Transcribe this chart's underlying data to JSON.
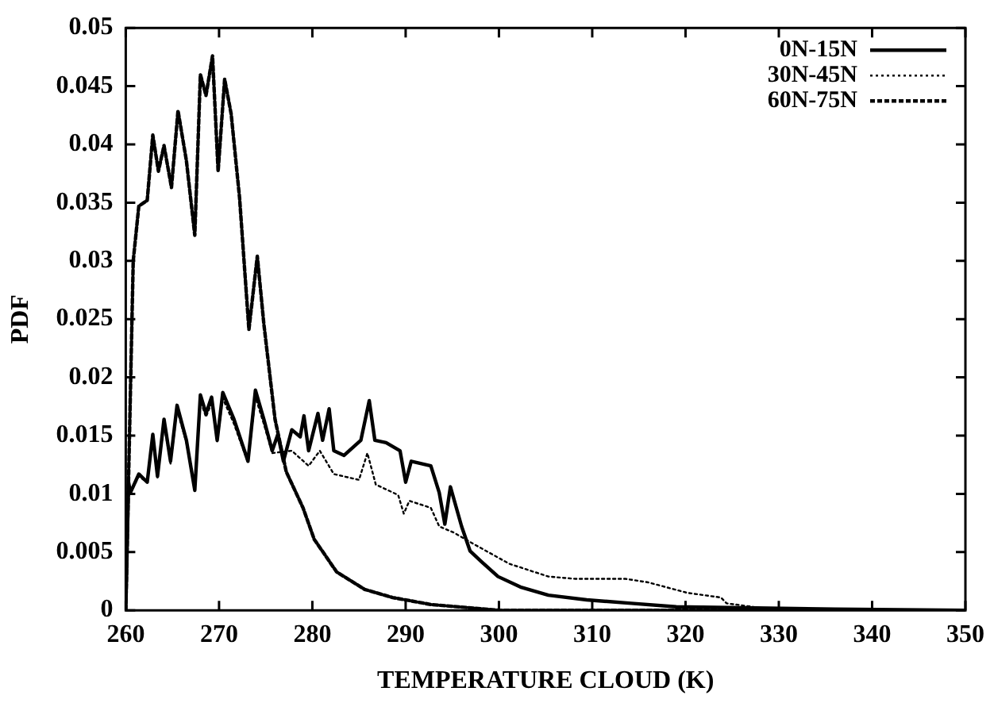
{
  "chart_data": {
    "type": "line",
    "xlabel": "TEMPERATURE CLOUD (K)",
    "ylabel": "PDF",
    "xlim": [
      260,
      350
    ],
    "ylim": [
      0,
      0.05
    ],
    "xticks": [
      260,
      270,
      280,
      290,
      300,
      310,
      320,
      330,
      340,
      350
    ],
    "yticks": [
      0,
      0.005,
      0.01,
      0.015,
      0.02,
      0.025,
      0.03,
      0.035,
      0.04,
      0.045,
      0.05
    ],
    "grid": false,
    "legend": "top right",
    "marker": "none",
    "series": [
      {
        "name": "0N-15N",
        "color": "#000000",
        "line_style": "solid",
        "x": [
          260,
          260.3,
          260.5,
          261.4,
          262.3,
          262.9,
          263.4,
          264.1,
          264.8,
          265.5,
          266.5,
          267.4,
          268,
          268.6,
          269.2,
          269.8,
          270.4,
          271.6,
          273.1,
          273.9,
          274.8,
          275.7,
          276.3,
          276.9,
          277.8,
          278.7,
          279.1,
          279.6,
          280.6,
          281.1,
          281.8,
          282.3,
          283.4,
          285.2,
          286.1,
          286.7,
          287.9,
          289.4,
          290,
          290.6,
          292.7,
          293.6,
          294.2,
          294.8,
          296,
          296.9,
          298.1,
          299.9,
          302.3,
          305.3,
          309.4,
          314.2,
          319,
          336,
          350
        ],
        "values": [
          0,
          0.011,
          0.0101,
          0.0117,
          0.011,
          0.0151,
          0.0115,
          0.0164,
          0.0128,
          0.0176,
          0.0146,
          0.0103,
          0.0185,
          0.0169,
          0.0183,
          0.0146,
          0.0187,
          0.0164,
          0.0128,
          0.0189,
          0.0164,
          0.0137,
          0.0151,
          0.0128,
          0.0155,
          0.0149,
          0.0167,
          0.0137,
          0.0169,
          0.0146,
          0.0173,
          0.0137,
          0.0133,
          0.0146,
          0.018,
          0.0146,
          0.0144,
          0.0137,
          0.011,
          0.0128,
          0.0124,
          0.0101,
          0.0074,
          0.0106,
          0.0072,
          0.0051,
          0.0042,
          0.0029,
          0.002,
          0.0013,
          0.0009,
          0.0006,
          0.0003,
          0.0001,
          0
        ]
      },
      {
        "name": "30N-45N",
        "color": "#000000",
        "line_style": "dotted",
        "x": [
          260,
          260.3,
          260.5,
          261.4,
          262.3,
          262.9,
          263.4,
          264.1,
          264.8,
          265.5,
          266.5,
          267.4,
          268,
          268.6,
          269.2,
          269.8,
          270.4,
          271.6,
          273.1,
          273.9,
          274.8,
          275.7,
          277.8,
          279.6,
          280.8,
          282.3,
          285,
          285.9,
          286.8,
          289.2,
          289.8,
          290.4,
          292.7,
          293.6,
          295.1,
          297.5,
          301.1,
          305.3,
          308.2,
          311.2,
          313.6,
          316,
          320.2,
          323.8,
          324.4,
          330,
          350
        ],
        "values": [
          0,
          0.011,
          0.0101,
          0.0115,
          0.011,
          0.0148,
          0.0114,
          0.016,
          0.0126,
          0.0172,
          0.0144,
          0.0104,
          0.018,
          0.0166,
          0.0178,
          0.0145,
          0.0182,
          0.016,
          0.0127,
          0.0183,
          0.016,
          0.0135,
          0.0137,
          0.0124,
          0.0137,
          0.0117,
          0.0112,
          0.0135,
          0.0108,
          0.0099,
          0.0083,
          0.0094,
          0.0088,
          0.0072,
          0.0067,
          0.0056,
          0.004,
          0.0029,
          0.0027,
          0.0027,
          0.0027,
          0.0024,
          0.0015,
          0.0011,
          0.0006,
          0,
          0
        ]
      },
      {
        "name": "60N-75N",
        "color": "#000000",
        "line_style": "dashed",
        "x": [
          260,
          260.8,
          261.4,
          262.3,
          262.9,
          263.5,
          264.1,
          264.9,
          265.6,
          266.5,
          267.4,
          268,
          268.6,
          269.3,
          269.9,
          270.6,
          271.3,
          272.2,
          273.2,
          274.1,
          274.8,
          276,
          277.2,
          279,
          280.2,
          282.6,
          285.6,
          288.6,
          292.7,
          300,
          350
        ],
        "values": [
          0,
          0.03,
          0.0347,
          0.0352,
          0.0408,
          0.0377,
          0.0399,
          0.0363,
          0.0429,
          0.0386,
          0.0322,
          0.046,
          0.0442,
          0.0476,
          0.0377,
          0.0456,
          0.0426,
          0.0354,
          0.0241,
          0.0304,
          0.0246,
          0.0164,
          0.0119,
          0.0088,
          0.0061,
          0.0033,
          0.0018,
          0.0011,
          0.0005,
          0,
          0
        ]
      }
    ]
  }
}
